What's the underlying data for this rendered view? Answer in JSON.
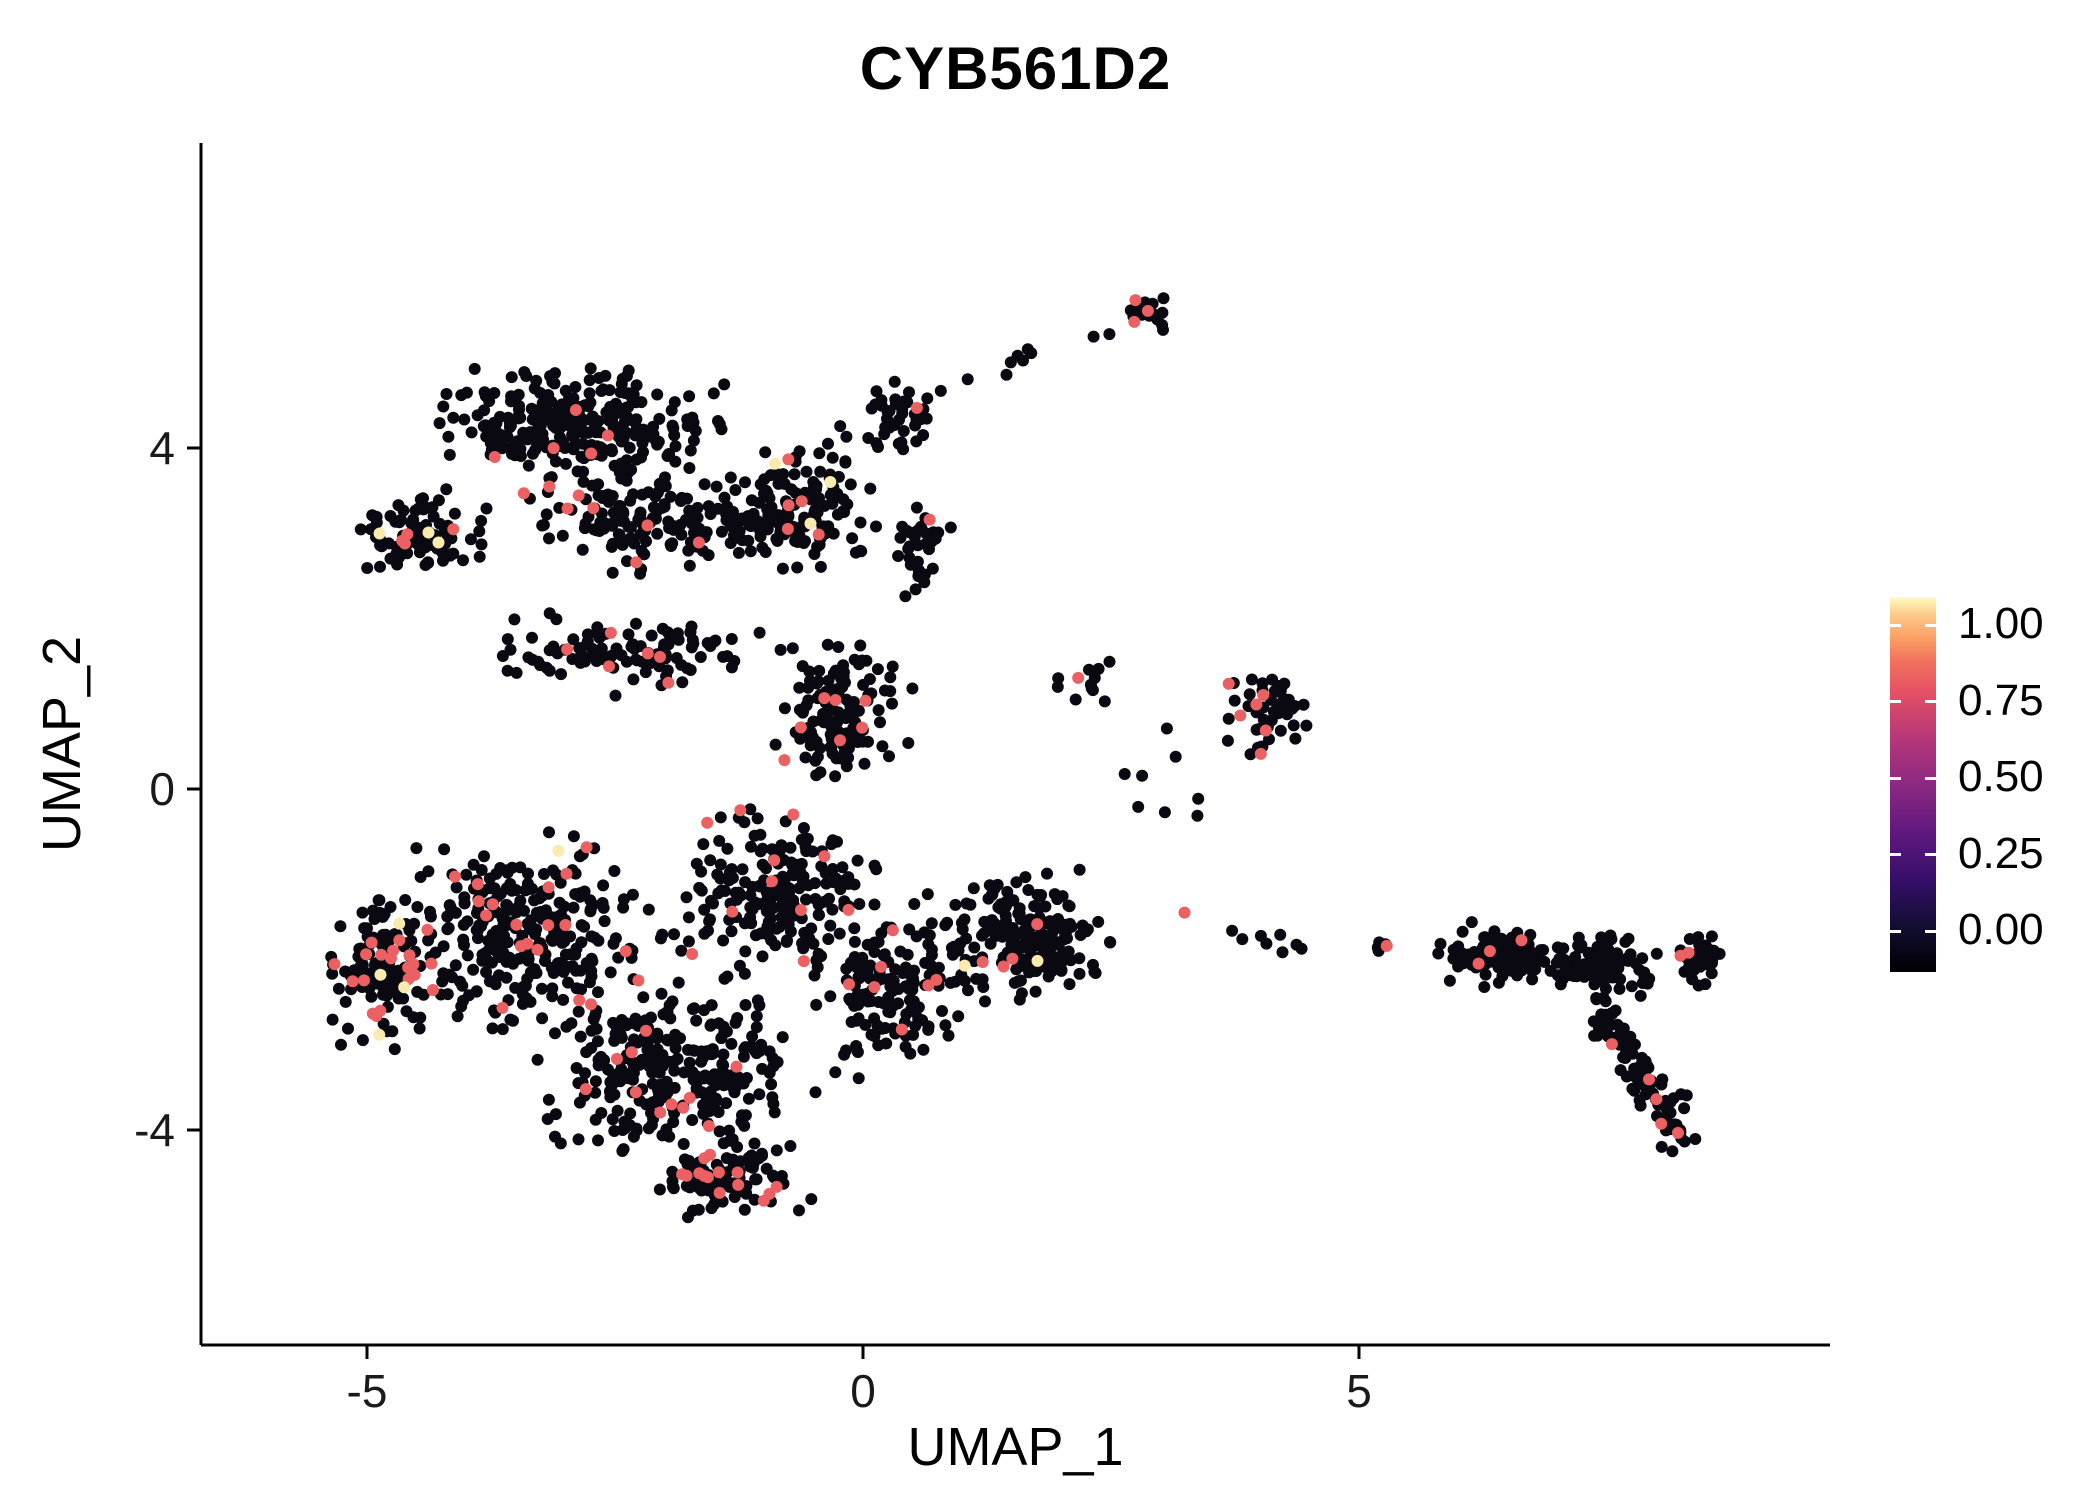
{
  "chart_data": {
    "type": "scatter",
    "title": "CYB561D2",
    "xlabel": "UMAP_1",
    "ylabel": "UMAP_2",
    "x_ticks": [
      -5,
      0,
      5
    ],
    "y_ticks": [
      -4,
      0,
      4
    ],
    "xlim": [
      -6.7,
      9.8
    ],
    "ylim": [
      -6.2,
      7.6
    ],
    "grid": false,
    "background": "#FFFFFF",
    "axis_color": "#000000",
    "tick_label_color": "#1A1A1A",
    "point_radius": 6,
    "seed": 20240613,
    "point_colors": {
      "zero": "#0A0810",
      "mid": "#EB6062",
      "high": "#F9EBAE"
    },
    "legend": {
      "position": "right",
      "tick_labels": [
        "1.00",
        "0.75",
        "0.50",
        "0.25",
        "0.00"
      ],
      "tick_values": [
        1.0,
        0.75,
        0.5,
        0.25,
        0.0
      ],
      "gradient_stops": [
        {
          "pos": 0,
          "color": "#000004"
        },
        {
          "pos": 12,
          "color": "#120D31"
        },
        {
          "pos": 25,
          "color": "#360F6B"
        },
        {
          "pos": 37,
          "color": "#5F187F"
        },
        {
          "pos": 50,
          "color": "#8C2981"
        },
        {
          "pos": 62,
          "color": "#B53679"
        },
        {
          "pos": 75,
          "color": "#E65164"
        },
        {
          "pos": 83,
          "color": "#F2725E"
        },
        {
          "pos": 89,
          "color": "#FB9E63"
        },
        {
          "pos": 95,
          "color": "#FDC888"
        },
        {
          "pos": 100,
          "color": "#FCFDBF"
        }
      ]
    },
    "clusters": [
      {
        "name": "upper-core",
        "cx": -2.9,
        "cy": 4.25,
        "rx": 1.75,
        "ry": 0.85,
        "n": 290,
        "red": 0.02,
        "yellow": 0.003
      },
      {
        "name": "upper-left-arm",
        "cx": -4.45,
        "cy": 3.0,
        "rx": 0.85,
        "ry": 0.6,
        "n": 95,
        "red": 0.05,
        "yellow": 0.01
      },
      {
        "name": "upper-mid-south",
        "cx": -2.2,
        "cy": 3.1,
        "rx": 1.6,
        "ry": 0.7,
        "n": 150,
        "red": 0.03,
        "yellow": 0
      },
      {
        "name": "upper-right",
        "cx": -0.65,
        "cy": 3.3,
        "rx": 1.0,
        "ry": 1.05,
        "n": 150,
        "red": 0.04,
        "yellow": 0.007
      },
      {
        "name": "upper-right-tip",
        "cx": 0.35,
        "cy": 4.35,
        "rx": 0.45,
        "ry": 0.55,
        "n": 40,
        "red": 0.05,
        "yellow": 0
      },
      {
        "name": "upper-right-edge",
        "cx": 0.55,
        "cy": 2.8,
        "rx": 0.35,
        "ry": 0.75,
        "n": 35,
        "red": 0.06,
        "yellow": 0.03
      },
      {
        "name": "trail-to-top",
        "x1": 0.35,
        "y1": 4.5,
        "x2": 2.55,
        "y2": 5.45,
        "w": 0.12,
        "n": 10,
        "red": 0.1,
        "yellow": 0
      },
      {
        "name": "top-small-cluster",
        "cx": 2.85,
        "cy": 5.6,
        "rx": 0.3,
        "ry": 0.27,
        "n": 28,
        "red": 0.07,
        "yellow": 0
      },
      {
        "name": "mid-band",
        "cx": -2.3,
        "cy": 1.6,
        "rx": 1.9,
        "ry": 0.55,
        "n": 110,
        "red": 0.04,
        "yellow": 0
      },
      {
        "name": "mid-column",
        "cx": -0.25,
        "cy": 0.9,
        "rx": 0.8,
        "ry": 1.1,
        "n": 140,
        "red": 0.03,
        "yellow": 0
      },
      {
        "name": "lower-core-west",
        "cx": -3.5,
        "cy": -1.7,
        "rx": 1.75,
        "ry": 1.45,
        "n": 330,
        "red": 0.09,
        "yellow": 0.004
      },
      {
        "name": "lower-far-west",
        "cx": -4.9,
        "cy": -2.2,
        "rx": 0.75,
        "ry": 1.0,
        "n": 110,
        "red": 0.13,
        "yellow": 0.012
      },
      {
        "name": "lower-core-south",
        "cx": -1.9,
        "cy": -3.3,
        "rx": 1.7,
        "ry": 1.3,
        "n": 280,
        "red": 0.07,
        "yellow": 0
      },
      {
        "name": "lower-core-east",
        "cx": -0.9,
        "cy": -1.2,
        "rx": 1.4,
        "ry": 1.2,
        "n": 210,
        "red": 0.04,
        "yellow": 0
      },
      {
        "name": "lower-bottom-tail",
        "cx": -1.4,
        "cy": -4.55,
        "rx": 1.0,
        "ry": 0.55,
        "n": 100,
        "red": 0.13,
        "yellow": 0
      },
      {
        "name": "lower-east-bulge",
        "cx": 0.3,
        "cy": -2.3,
        "rx": 0.95,
        "ry": 1.25,
        "n": 150,
        "red": 0.025,
        "yellow": 0
      },
      {
        "name": "east-cluster",
        "cx": 1.65,
        "cy": -1.75,
        "rx": 1.1,
        "ry": 1.0,
        "n": 205,
        "red": 0.015,
        "yellow": 0.005
      },
      {
        "name": "north-east-dots",
        "cx": 2.1,
        "cy": 1.25,
        "rx": 0.45,
        "ry": 0.3,
        "n": 12,
        "red": 0.12,
        "yellow": 0
      },
      {
        "name": "midright-cluster",
        "cx": 4.1,
        "cy": 1.0,
        "rx": 0.5,
        "ry": 0.72,
        "n": 55,
        "red": 0.06,
        "yellow": 0
      },
      {
        "name": "stragglers",
        "cx": 3.0,
        "cy": 0.1,
        "rx": 0.8,
        "ry": 0.9,
        "n": 8,
        "red": 0,
        "yellow": 0
      },
      {
        "name": "connector-east",
        "x1": 3.2,
        "y1": -1.45,
        "x2": 4.4,
        "y2": -1.9,
        "w": 0.15,
        "n": 9,
        "red": 0.22,
        "yellow": 0
      },
      {
        "name": "connector-pair",
        "cx": 5.2,
        "cy": -1.85,
        "rx": 0.22,
        "ry": 0.1,
        "n": 5,
        "red": 0.2,
        "yellow": 0
      },
      {
        "name": "right-band-west",
        "cx": 6.4,
        "cy": -1.95,
        "rx": 0.7,
        "ry": 0.42,
        "n": 120,
        "red": 0.03,
        "yellow": 0
      },
      {
        "name": "right-band-mid",
        "cx": 7.45,
        "cy": -2.1,
        "rx": 0.8,
        "ry": 0.5,
        "n": 95,
        "red": 0.03,
        "yellow": 0
      },
      {
        "name": "right-tail",
        "x1": 7.45,
        "y1": -2.7,
        "x2": 8.3,
        "y2": -4.1,
        "w": 0.3,
        "n": 95,
        "red": 0.04,
        "yellow": 0
      },
      {
        "name": "right-tip",
        "cx": 8.45,
        "cy": -2.0,
        "rx": 0.35,
        "ry": 0.4,
        "n": 40,
        "red": 0.06,
        "yellow": 0
      }
    ]
  }
}
